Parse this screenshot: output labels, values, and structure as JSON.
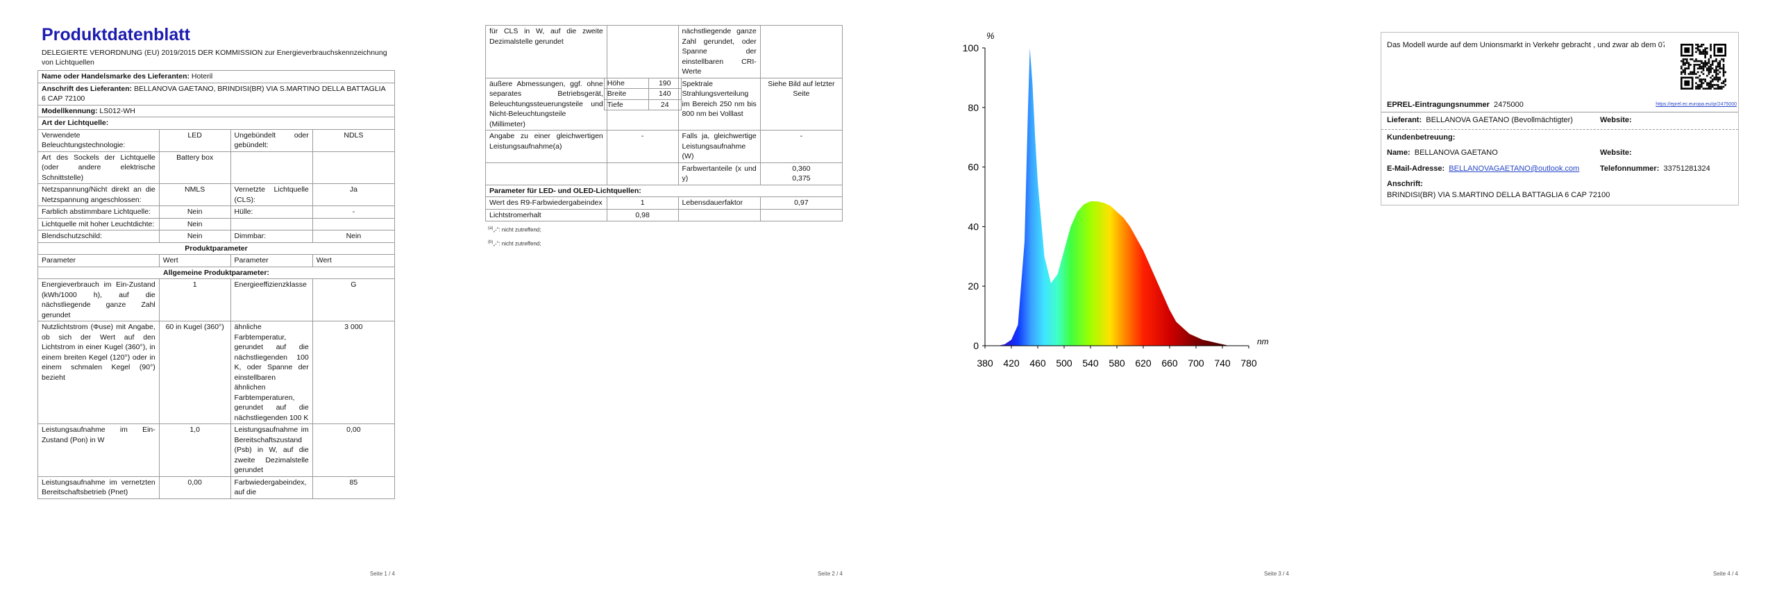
{
  "pages": [
    {
      "title": "Produktdatenblatt",
      "subtitle": "DELEGIERTE VERORDNUNG (EU) 2019/2015 DER KOMMISSION zur Energieverbrauchskennzeichnung von Lichtquellen",
      "rows": [
        {
          "label": "Name oder Handelsmarke des Lieferanten:",
          "value": "Hoteril"
        },
        {
          "label": "Anschrift des Lieferanten:",
          "value": "BELLANOVA GAETANO, BRINDISI(BR) VIA S.MARTINO DELLA BATTAGLIA 6 CAP 72100"
        },
        {
          "label": "Modellkennung:",
          "value": "LS012-WH"
        },
        {
          "heading": "Art der Lichtquelle:"
        },
        [
          "Verwendete Beleuchtungstechnologie:",
          "LED",
          "Ungebündelt oder gebündelt:",
          "NDLS"
        ],
        [
          "Art des Sockels der Lichtquelle (oder andere elektrische Schnittstelle)",
          "Battery box",
          null,
          null
        ],
        [
          "Netzspannung/Nicht direkt an die Netzspannung angeschlossen:",
          "NMLS",
          "Vernetzte Lichtquelle (CLS):",
          "Ja"
        ],
        [
          "Farblich abstimmbare Lichtquelle:",
          "Nein",
          "Hülle:",
          "-"
        ],
        [
          "Lichtquelle mit hoher Leuchtdichte:",
          "Nein",
          null,
          null
        ],
        [
          "Blendschutzschild:",
          "Nein",
          "Dimmbar:",
          "Nein"
        ],
        {
          "section": "Produktparameter"
        },
        {
          "columns": [
            "Parameter",
            "Wert",
            "Parameter",
            "Wert"
          ]
        },
        {
          "section": "Allgemeine Produktparameter:"
        },
        [
          "Energieverbrauch im Ein-Zustand (kWh/1000 h), auf die nächstliegende ganze Zahl gerundet",
          "1",
          "Energieeffizienzklasse",
          "G"
        ],
        [
          "Nutzlichtstrom (Φuse) mit Angabe, ob sich der Wert auf den Lichtstrom in einer Kugel (360°), in einem breiten Kegel (120°) oder in einem schmalen Kegel (90°) bezieht",
          "60 in Kugel (360°)",
          "ähnliche Farbtemperatur, gerundet auf die nächstliegenden 100 K, oder Spanne der einstellbaren ähnlichen Farbtemperaturen, gerundet auf die nächstliegenden 100 K",
          "3 000"
        ],
        [
          "Leistungsaufnahme im Ein-Zustand (Pon) in W",
          "1,0",
          "Leistungsaufnahme im Bereitschaftszustand (Psb) in W, auf die zweite Dezimalstelle gerundet",
          "0,00"
        ],
        [
          "Leistungsaufnahme im vernetzten Bereitschaftsbetrieb (Pnet)",
          "0,00",
          "Farbwiedergabeindex, auf die",
          "85"
        ]
      ],
      "footer": "Seite 1 / 4"
    },
    {
      "rows": [
        [
          "für CLS in W, auf die zweite Dezimalstelle gerundet",
          null,
          "nächstliegende ganze Zahl gerundet, oder Spanne der einstellbaren CRI-Werte",
          null
        ],
        [
          "äußere Abmessungen, ggf. ohne separates Betriebsgerät, Beleuchtungssteuerungsteile und Nicht-Beleuchtungsteile (Millimeter)",
          {
            "dimensions": [
              [
                "Höhe",
                "190"
              ],
              [
                "Breite",
                "140"
              ],
              [
                "Tiefe",
                "24"
              ]
            ]
          },
          "Spektrale Strahlungsverteilung im Bereich 250 nm bis 800 nm bei Volllast",
          "Siehe Bild auf letzter Seite"
        ],
        [
          "Angabe zu einer gleichwertigen Leistungsaufnahme(a)",
          "-",
          "Falls ja, gleichwertige Leistungsaufnahme (W)",
          "-"
        ],
        [
          null,
          null,
          "Farbwertanteile (x und y)",
          "0,360 0,375"
        ],
        {
          "heading": "Parameter für LED- und OLED-Lichtquellen:"
        },
        [
          "Wert des R9-Farbwiedergabeindex",
          "1",
          "Lebensdauerfaktor",
          "0,97"
        ],
        [
          "Lichtstromerhalt",
          "0,98",
          null,
          null
        ]
      ],
      "footnotes": [
        {
          "marker": "(a)",
          "text": "„-“: nicht zutreffend;"
        },
        {
          "marker": "(b)",
          "text": "„-“: nicht zutreffend;"
        }
      ],
      "footer": "Seite 2 / 4"
    },
    {
      "footer": "Seite 3 / 4"
    },
    {
      "intro": "Das Modell wurde auf dem Unionsmarkt in Verkehr gebracht , und zwar ab dem 07",
      "qr_link": "https://eprel.ec.europa.eu/qr/2475000",
      "registration": {
        "label": "EPREL-Eintragungsnummer",
        "value": "2475000"
      },
      "supplier": {
        "label": "Lieferant:",
        "value": "BELLANOVA GAETANO (Bevollmächtigter)",
        "website_label": "Website:"
      },
      "customer_service": {
        "heading": "Kundenbetreuung:",
        "name_label": "Name:",
        "name": "BELLANOVA GAETANO",
        "website_label": "Website:",
        "email_label": "E-Mail-Adresse:",
        "email": "BELLANOVAGAETANO@outlook.com",
        "phone_label": "Telefonnummer:",
        "phone": "33751281324",
        "address_label": "Anschrift:",
        "address": "BRINDISI(BR) VIA S.MARTINO DELLA BATTAGLIA 6 CAP 72100"
      },
      "footer": "Seite 4 / 4"
    }
  ],
  "chart_data": {
    "type": "area",
    "ylabel": "%",
    "xlabel": "nm",
    "x": [
      400,
      410,
      420,
      430,
      440,
      445,
      448,
      452,
      456,
      460,
      470,
      480,
      490,
      500,
      510,
      520,
      530,
      540,
      550,
      560,
      570,
      580,
      590,
      600,
      610,
      620,
      630,
      640,
      650,
      660,
      670,
      680,
      690,
      700,
      710,
      720,
      730,
      740,
      750
    ],
    "series": [
      {
        "values": [
          0,
          0.5,
          2,
          7,
          35,
          78,
          100,
          88,
          70,
          55,
          30,
          21,
          24,
          32,
          40,
          45,
          47.5,
          48.5,
          48.5,
          48,
          47,
          45,
          43,
          40,
          36,
          32,
          27,
          22,
          17,
          12,
          8,
          6,
          4,
          3,
          2,
          1.5,
          1,
          0.5,
          0
        ]
      }
    ],
    "xlim": [
      380,
      780
    ],
    "ylim": [
      0,
      100
    ],
    "xticks": [
      380,
      420,
      460,
      500,
      540,
      580,
      620,
      660,
      700,
      740,
      780
    ],
    "yticks": [
      0,
      20,
      40,
      60,
      80,
      100
    ]
  }
}
